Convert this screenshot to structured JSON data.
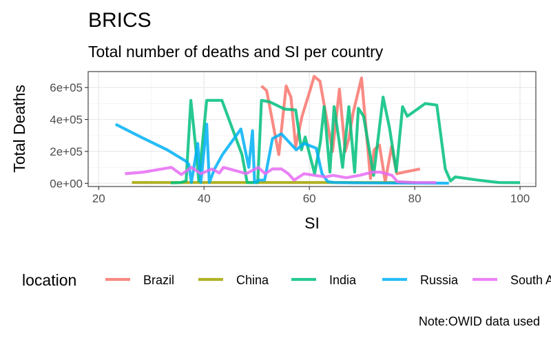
{
  "chart_data": {
    "type": "line",
    "title": "BRICS",
    "subtitle": "Total number of deaths and SI per country",
    "xlabel": "SI",
    "ylabel": "Total Deaths",
    "caption": "Note:OWID data used",
    "xlim": [
      18,
      103
    ],
    "ylim": [
      -20000,
      700000
    ],
    "x_ticks": [
      20,
      40,
      60,
      80,
      100
    ],
    "x_tick_labels": [
      "20",
      "40",
      "60",
      "80",
      "100"
    ],
    "y_ticks": [
      0,
      200000,
      400000,
      600000
    ],
    "y_tick_labels": [
      "0e+00",
      "2e+05",
      "4e+05",
      "6e+05"
    ],
    "grid": true,
    "legend": {
      "title": "location",
      "position": "bottom"
    },
    "series": [
      {
        "name": "Brazil",
        "color": "#F8766D",
        "points": [
          [
            50.9,
            610000
          ],
          [
            51.9,
            580000
          ],
          [
            54.2,
            180000
          ],
          [
            55.6,
            610000
          ],
          [
            56.5,
            540000
          ],
          [
            57.4,
            230000
          ],
          [
            58.6,
            420000
          ],
          [
            60.2,
            590000
          ],
          [
            60.9,
            670000
          ],
          [
            62.0,
            640000
          ],
          [
            64.4,
            200000
          ],
          [
            65.7,
            590000
          ],
          [
            66.8,
            200000
          ],
          [
            67.5,
            280000
          ],
          [
            68.3,
            440000
          ],
          [
            69.9,
            660000
          ],
          [
            71.6,
            30000
          ],
          [
            72.3,
            210000
          ],
          [
            73.3,
            240000
          ],
          [
            74.4,
            10000
          ],
          [
            75.6,
            230000
          ],
          [
            76.6,
            60000
          ],
          [
            78.0,
            70000
          ],
          [
            81.0,
            90000
          ]
        ]
      },
      {
        "name": "China",
        "color": "#A3A500",
        "points": [
          [
            26.3,
            4800
          ],
          [
            30.0,
            5000
          ],
          [
            33.7,
            5000
          ],
          [
            39.4,
            5000
          ],
          [
            45.0,
            5000
          ],
          [
            48.0,
            5000
          ],
          [
            52.0,
            5000
          ],
          [
            56.0,
            5000
          ],
          [
            62.0,
            5000
          ],
          [
            66.0,
            5000
          ],
          [
            70.0,
            5000
          ],
          [
            73.0,
            5000
          ],
          [
            77.0,
            5000
          ],
          [
            80.0,
            5000
          ]
        ]
      },
      {
        "name": "India",
        "color": "#00BF7D",
        "points": [
          [
            33.7,
            3000
          ],
          [
            35.6,
            5000
          ],
          [
            36.6,
            15000
          ],
          [
            37.5,
            520000
          ],
          [
            38.5,
            200000
          ],
          [
            39.0,
            15000
          ],
          [
            40.5,
            520000
          ],
          [
            43.4,
            520000
          ],
          [
            47.2,
            180000
          ],
          [
            48.2,
            5000
          ],
          [
            50.2,
            5000
          ],
          [
            50.9,
            520000
          ],
          [
            52.5,
            510000
          ],
          [
            55.3,
            465000
          ],
          [
            57.4,
            460000
          ],
          [
            58.5,
            210000
          ],
          [
            59.2,
            290000
          ],
          [
            61.0,
            60000
          ],
          [
            62.1,
            260000
          ],
          [
            62.8,
            480000
          ],
          [
            63.9,
            70000
          ],
          [
            64.7,
            480000
          ],
          [
            65.7,
            250000
          ],
          [
            66.3,
            100000
          ],
          [
            67.5,
            480000
          ],
          [
            68.6,
            70000
          ],
          [
            69.3,
            470000
          ],
          [
            70.3,
            420000
          ],
          [
            72.2,
            50000
          ],
          [
            74.0,
            540000
          ],
          [
            75.2,
            350000
          ],
          [
            76.5,
            75000
          ],
          [
            77.7,
            480000
          ],
          [
            78.6,
            420000
          ],
          [
            82.0,
            500000
          ],
          [
            84.2,
            490000
          ],
          [
            85.8,
            90000
          ],
          [
            86.8,
            15000
          ],
          [
            87.7,
            40000
          ],
          [
            92.0,
            20000
          ],
          [
            96.0,
            5000
          ],
          [
            100.0,
            4000
          ]
        ]
      },
      {
        "name": "Russia",
        "color": "#00B0F6",
        "points": [
          [
            23.2,
            370000
          ],
          [
            28.0,
            290000
          ],
          [
            33.0,
            210000
          ],
          [
            36.5,
            140000
          ],
          [
            37.1,
            120000
          ],
          [
            37.6,
            5000
          ],
          [
            38.8,
            250000
          ],
          [
            39.4,
            5000
          ],
          [
            40.5,
            370000
          ],
          [
            41.0,
            5000
          ],
          [
            42.0,
            90000
          ],
          [
            43.5,
            180000
          ],
          [
            47.0,
            340000
          ],
          [
            48.5,
            100000
          ],
          [
            49.2,
            330000
          ],
          [
            49.6,
            5000
          ],
          [
            50.5,
            20000
          ],
          [
            51.5,
            20000
          ],
          [
            53.0,
            280000
          ],
          [
            54.7,
            310000
          ],
          [
            57.5,
            210000
          ],
          [
            59.0,
            250000
          ],
          [
            61.3,
            220000
          ],
          [
            62.4,
            60000
          ],
          [
            63.5,
            10000
          ],
          [
            64.8,
            5000
          ],
          [
            70.0,
            3000
          ],
          [
            76.0,
            2000
          ],
          [
            80.0,
            1500
          ],
          [
            84.0,
            1000
          ],
          [
            86.5,
            500
          ]
        ]
      },
      {
        "name": "South Africa",
        "color": "#E76BF3",
        "points": [
          [
            25.0,
            60000
          ],
          [
            28.5,
            70000
          ],
          [
            33.8,
            100000
          ],
          [
            35.7,
            55000
          ],
          [
            37.6,
            100000
          ],
          [
            39.4,
            60000
          ],
          [
            41.5,
            90000
          ],
          [
            42.9,
            65000
          ],
          [
            43.7,
            100000
          ],
          [
            47.0,
            70000
          ],
          [
            48.0,
            60000
          ],
          [
            50.3,
            100000
          ],
          [
            51.6,
            60000
          ],
          [
            53.0,
            90000
          ],
          [
            54.7,
            90000
          ],
          [
            56.0,
            60000
          ],
          [
            57.1,
            20000
          ],
          [
            59.0,
            60000
          ],
          [
            63.0,
            40000
          ],
          [
            64.5,
            50000
          ],
          [
            67.0,
            35000
          ],
          [
            69.5,
            50000
          ],
          [
            72.0,
            70000
          ],
          [
            73.5,
            70000
          ],
          [
            75.7,
            50000
          ],
          [
            76.7,
            10000
          ],
          [
            80.0,
            5000
          ],
          [
            83.0,
            5000
          ],
          [
            84.1,
            4000
          ]
        ]
      }
    ]
  }
}
